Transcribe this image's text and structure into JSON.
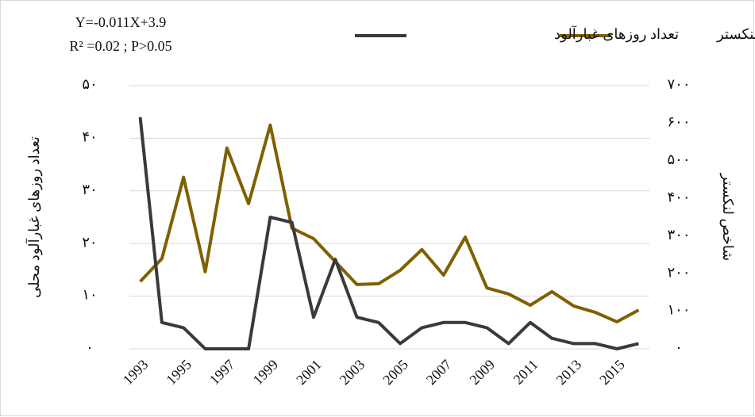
{
  "chart_data": {
    "type": "line",
    "annotations": [
      "Y=-0.011X+3.9",
      "R² =0.02 ; P>0.05"
    ],
    "y_label": "تعداد روزهای غبارآلود محلی",
    "y2_label": "شاخص لنکستر",
    "categories": [
      "1993",
      null,
      "1995",
      null,
      "1997",
      null,
      "1999",
      null,
      "2001",
      null,
      "2003",
      null,
      "2005",
      null,
      "2007",
      null,
      "2009",
      null,
      "2011",
      null,
      "2013",
      null,
      "2015",
      null
    ],
    "series": [
      {
        "name": "شاخص لنکستر",
        "color": "#7f6000",
        "axis": "y2",
        "values": [
          179,
          240,
          456,
          205,
          534,
          386,
          595,
          321,
          293,
          232,
          171,
          173,
          209,
          264,
          196,
          297,
          162,
          146,
          116,
          152,
          114,
          97,
          72,
          103
        ]
      },
      {
        "name": "تعداد روزهای غبارآلود",
        "color": "#3a3a3a",
        "values": [
          44,
          5,
          4,
          0,
          0,
          0,
          25,
          24,
          6,
          17,
          6,
          5,
          1,
          4,
          5,
          5,
          4,
          1,
          5,
          2,
          1,
          1,
          0,
          1
        ]
      }
    ],
    "ylim": [
      0,
      50
    ],
    "yticks": [
      {
        "value": 0,
        "label": "۰"
      },
      {
        "value": 10,
        "label": "۱۰"
      },
      {
        "value": 20,
        "label": "۲۰"
      },
      {
        "value": 30,
        "label": "۳۰"
      },
      {
        "value": 40,
        "label": "۴۰"
      },
      {
        "value": 50,
        "label": "۵۰"
      }
    ],
    "y2lim": [
      0,
      700
    ],
    "y2ticks": [
      {
        "value": 0,
        "label": "۰"
      },
      {
        "value": 100,
        "label": "۱۰۰"
      },
      {
        "value": 200,
        "label": "۲۰۰"
      },
      {
        "value": 300,
        "label": "۳۰۰"
      },
      {
        "value": 400,
        "label": "۴۰۰"
      },
      {
        "value": 500,
        "label": "۵۰۰"
      },
      {
        "value": 600,
        "label": "۶۰۰"
      },
      {
        "value": 700,
        "label": "۷۰۰"
      }
    ],
    "grid": true
  }
}
